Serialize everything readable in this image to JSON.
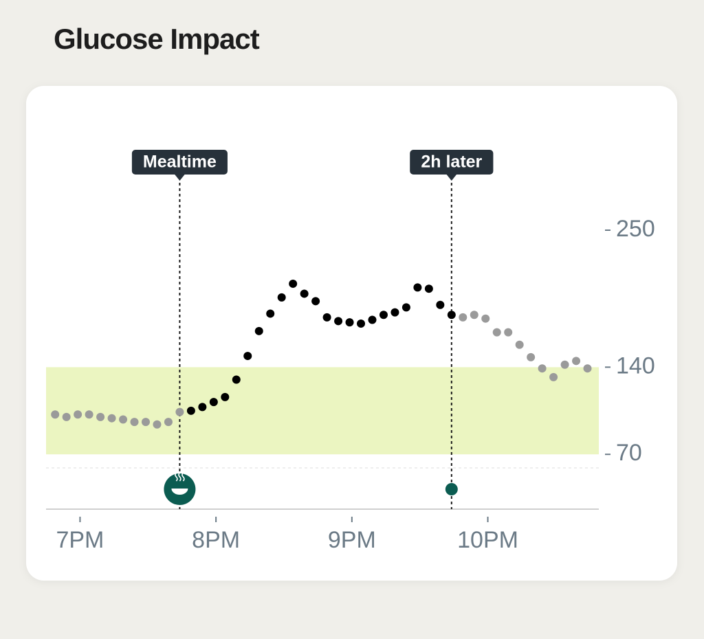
{
  "chart_data": {
    "type": "dot_line",
    "title": "Glucose Impact",
    "x": [
      1129,
      1134,
      1139,
      1144,
      1149,
      1154,
      1159,
      1164,
      1169,
      1174,
      1179,
      1184,
      1189,
      1194,
      1199,
      1204,
      1209,
      1214,
      1219,
      1224,
      1229,
      1234,
      1239,
      1244,
      1249,
      1254,
      1259,
      1264,
      1269,
      1274,
      1279,
      1284,
      1289,
      1294,
      1299,
      1304,
      1309,
      1314,
      1319,
      1324,
      1329,
      1334,
      1339,
      1344,
      1349,
      1354,
      1359,
      1364
    ],
    "values": [
      102,
      100,
      102,
      102,
      100,
      99,
      98,
      96,
      96,
      94,
      96,
      104,
      105,
      108,
      112,
      116,
      130,
      149,
      169,
      183,
      196,
      207,
      199,
      193,
      180,
      177,
      176,
      175,
      178,
      182,
      184,
      188,
      204,
      203,
      190,
      182,
      180,
      182,
      179,
      168,
      168,
      158,
      148,
      139,
      132,
      142,
      145,
      139
    ],
    "color": "#9a9a9a",
    "highlight_color": "#000000",
    "markers": [
      {
        "label": "Mealtime",
        "x": 1184
      },
      {
        "label": "2h later",
        "x": 1304
      }
    ],
    "target_range": [
      70,
      140
    ],
    "target_color": "#ebf5c1",
    "xlim": [
      1125,
      1369
    ],
    "xticks": [
      {
        "value": 1140,
        "label": "7PM"
      },
      {
        "value": 1200,
        "label": "8PM"
      },
      {
        "value": 1260,
        "label": "9PM"
      },
      {
        "value": 1320,
        "label": "10PM"
      }
    ],
    "ylim": [
      26,
      250
    ],
    "yticks": [
      250,
      140,
      70
    ],
    "grid": false
  }
}
